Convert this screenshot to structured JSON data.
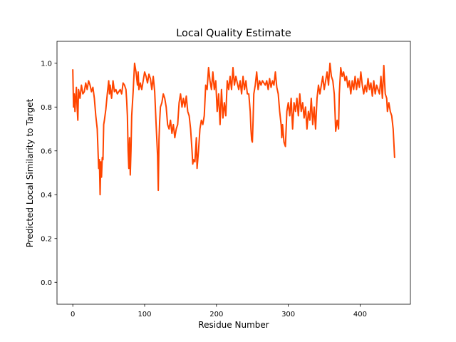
{
  "chart_data": {
    "type": "line",
    "title": "Local Quality Estimate",
    "xlabel": "Residue Number",
    "ylabel": "Predicted Local Similarity to Target",
    "xlim": [
      -22,
      470
    ],
    "ylim": [
      -0.1,
      1.1
    ],
    "xticks": [
      0,
      100,
      200,
      300,
      400
    ],
    "yticks": [
      0.0,
      0.2,
      0.4,
      0.6,
      0.8,
      1.0
    ],
    "ytick_labels": [
      "0.0",
      "0.2",
      "0.4",
      "0.6",
      "0.8",
      "1.0"
    ],
    "grid": false,
    "legend": "none",
    "series": [
      {
        "color": "#ff4500",
        "points": [
          [
            0,
            0.97
          ],
          [
            1,
            0.8
          ],
          [
            2,
            0.86
          ],
          [
            3,
            0.78
          ],
          [
            4,
            0.84
          ],
          [
            5,
            0.89
          ],
          [
            6,
            0.8
          ],
          [
            7,
            0.74
          ],
          [
            8,
            0.88
          ],
          [
            10,
            0.84
          ],
          [
            12,
            0.9
          ],
          [
            14,
            0.86
          ],
          [
            16,
            0.87
          ],
          [
            18,
            0.91
          ],
          [
            20,
            0.88
          ],
          [
            22,
            0.92
          ],
          [
            24,
            0.9
          ],
          [
            26,
            0.87
          ],
          [
            28,
            0.89
          ],
          [
            30,
            0.84
          ],
          [
            32,
            0.76
          ],
          [
            34,
            0.7
          ],
          [
            36,
            0.52
          ],
          [
            37,
            0.56
          ],
          [
            38,
            0.4
          ],
          [
            39,
            0.55
          ],
          [
            40,
            0.48
          ],
          [
            41,
            0.57
          ],
          [
            42,
            0.56
          ],
          [
            43,
            0.72
          ],
          [
            44,
            0.74
          ],
          [
            46,
            0.79
          ],
          [
            48,
            0.86
          ],
          [
            50,
            0.92
          ],
          [
            51,
            0.86
          ],
          [
            52,
            0.9
          ],
          [
            54,
            0.84
          ],
          [
            56,
            0.92
          ],
          [
            58,
            0.87
          ],
          [
            60,
            0.88
          ],
          [
            62,
            0.86
          ],
          [
            64,
            0.87
          ],
          [
            66,
            0.88
          ],
          [
            68,
            0.86
          ],
          [
            70,
            0.91
          ],
          [
            72,
            0.9
          ],
          [
            74,
            0.88
          ],
          [
            75,
            0.83
          ],
          [
            76,
            0.76
          ],
          [
            77,
            0.6
          ],
          [
            78,
            0.52
          ],
          [
            79,
            0.66
          ],
          [
            80,
            0.49
          ],
          [
            81,
            0.6
          ],
          [
            82,
            0.76
          ],
          [
            84,
            0.87
          ],
          [
            86,
            1.0
          ],
          [
            88,
            0.96
          ],
          [
            90,
            0.9
          ],
          [
            91,
            0.96
          ],
          [
            92,
            0.88
          ],
          [
            94,
            0.91
          ],
          [
            96,
            0.88
          ],
          [
            98,
            0.92
          ],
          [
            100,
            0.96
          ],
          [
            102,
            0.94
          ],
          [
            104,
            0.91
          ],
          [
            106,
            0.95
          ],
          [
            108,
            0.93
          ],
          [
            110,
            0.88
          ],
          [
            112,
            0.94
          ],
          [
            114,
            0.87
          ],
          [
            116,
            0.72
          ],
          [
            118,
            0.58
          ],
          [
            119,
            0.42
          ],
          [
            120,
            0.65
          ],
          [
            121,
            0.74
          ],
          [
            122,
            0.8
          ],
          [
            124,
            0.82
          ],
          [
            126,
            0.86
          ],
          [
            128,
            0.84
          ],
          [
            130,
            0.8
          ],
          [
            132,
            0.72
          ],
          [
            134,
            0.7
          ],
          [
            136,
            0.74
          ],
          [
            138,
            0.68
          ],
          [
            140,
            0.72
          ],
          [
            142,
            0.66
          ],
          [
            144,
            0.7
          ],
          [
            146,
            0.72
          ],
          [
            148,
            0.82
          ],
          [
            150,
            0.86
          ],
          [
            152,
            0.8
          ],
          [
            154,
            0.84
          ],
          [
            156,
            0.8
          ],
          [
            158,
            0.85
          ],
          [
            160,
            0.78
          ],
          [
            162,
            0.76
          ],
          [
            164,
            0.7
          ],
          [
            166,
            0.6
          ],
          [
            167,
            0.54
          ],
          [
            168,
            0.56
          ],
          [
            170,
            0.55
          ],
          [
            172,
            0.66
          ],
          [
            173,
            0.52
          ],
          [
            175,
            0.6
          ],
          [
            177,
            0.7
          ],
          [
            179,
            0.74
          ],
          [
            181,
            0.72
          ],
          [
            183,
            0.76
          ],
          [
            185,
            0.9
          ],
          [
            187,
            0.88
          ],
          [
            189,
            0.98
          ],
          [
            191,
            0.92
          ],
          [
            193,
            0.88
          ],
          [
            195,
            0.96
          ],
          [
            197,
            0.88
          ],
          [
            199,
            0.92
          ],
          [
            201,
            0.78
          ],
          [
            203,
            0.86
          ],
          [
            205,
            0.72
          ],
          [
            207,
            0.88
          ],
          [
            209,
            0.75
          ],
          [
            211,
            0.82
          ],
          [
            213,
            0.76
          ],
          [
            215,
            0.92
          ],
          [
            217,
            0.88
          ],
          [
            219,
            0.94
          ],
          [
            221,
            0.88
          ],
          [
            223,
            0.98
          ],
          [
            225,
            0.9
          ],
          [
            227,
            0.94
          ],
          [
            229,
            0.91
          ],
          [
            231,
            0.88
          ],
          [
            233,
            0.92
          ],
          [
            235,
            0.86
          ],
          [
            237,
            0.94
          ],
          [
            239,
            0.88
          ],
          [
            241,
            0.92
          ],
          [
            243,
            0.86
          ],
          [
            245,
            0.86
          ],
          [
            247,
            0.78
          ],
          [
            248,
            0.7
          ],
          [
            249,
            0.65
          ],
          [
            250,
            0.64
          ],
          [
            251,
            0.74
          ],
          [
            252,
            0.86
          ],
          [
            254,
            0.9
          ],
          [
            256,
            0.96
          ],
          [
            258,
            0.88
          ],
          [
            260,
            0.92
          ],
          [
            262,
            0.9
          ],
          [
            264,
            0.92
          ],
          [
            266,
            0.91
          ],
          [
            268,
            0.9
          ],
          [
            270,
            0.92
          ],
          [
            272,
            0.88
          ],
          [
            274,
            0.93
          ],
          [
            276,
            0.89
          ],
          [
            278,
            0.92
          ],
          [
            280,
            0.9
          ],
          [
            282,
            0.96
          ],
          [
            284,
            0.89
          ],
          [
            286,
            0.86
          ],
          [
            288,
            0.78
          ],
          [
            290,
            0.72
          ],
          [
            291,
            0.66
          ],
          [
            292,
            0.72
          ],
          [
            294,
            0.64
          ],
          [
            296,
            0.62
          ],
          [
            298,
            0.78
          ],
          [
            300,
            0.82
          ],
          [
            302,
            0.76
          ],
          [
            304,
            0.84
          ],
          [
            306,
            0.7
          ],
          [
            308,
            0.82
          ],
          [
            310,
            0.78
          ],
          [
            312,
            0.84
          ],
          [
            314,
            0.76
          ],
          [
            316,
            0.86
          ],
          [
            318,
            0.78
          ],
          [
            320,
            0.82
          ],
          [
            322,
            0.75
          ],
          [
            324,
            0.8
          ],
          [
            326,
            0.7
          ],
          [
            328,
            0.78
          ],
          [
            330,
            0.74
          ],
          [
            332,
            0.84
          ],
          [
            334,
            0.72
          ],
          [
            336,
            0.8
          ],
          [
            338,
            0.7
          ],
          [
            340,
            0.84
          ],
          [
            342,
            0.9
          ],
          [
            344,
            0.86
          ],
          [
            346,
            0.9
          ],
          [
            348,
            0.94
          ],
          [
            350,
            0.88
          ],
          [
            352,
            0.92
          ],
          [
            354,
            0.96
          ],
          [
            356,
            0.9
          ],
          [
            358,
            1.0
          ],
          [
            360,
            0.94
          ],
          [
            362,
            0.92
          ],
          [
            364,
            0.86
          ],
          [
            365,
            0.78
          ],
          [
            366,
            0.69
          ],
          [
            368,
            0.74
          ],
          [
            370,
            0.7
          ],
          [
            371,
            0.86
          ],
          [
            373,
            0.98
          ],
          [
            375,
            0.94
          ],
          [
            377,
            0.96
          ],
          [
            379,
            0.92
          ],
          [
            381,
            0.94
          ],
          [
            383,
            0.89
          ],
          [
            385,
            0.92
          ],
          [
            387,
            0.86
          ],
          [
            389,
            0.92
          ],
          [
            391,
            0.88
          ],
          [
            393,
            0.94
          ],
          [
            395,
            0.88
          ],
          [
            397,
            0.93
          ],
          [
            399,
            0.89
          ],
          [
            401,
            0.96
          ],
          [
            403,
            0.9
          ],
          [
            405,
            0.86
          ],
          [
            407,
            0.9
          ],
          [
            409,
            0.87
          ],
          [
            411,
            0.93
          ],
          [
            413,
            0.88
          ],
          [
            415,
            0.91
          ],
          [
            417,
            0.85
          ],
          [
            419,
            0.92
          ],
          [
            421,
            0.86
          ],
          [
            423,
            0.9
          ],
          [
            425,
            0.88
          ],
          [
            427,
            0.86
          ],
          [
            429,
            0.94
          ],
          [
            431,
            0.84
          ],
          [
            433,
            0.99
          ],
          [
            434,
            0.92
          ],
          [
            435,
            0.86
          ],
          [
            437,
            0.84
          ],
          [
            438,
            0.78
          ],
          [
            440,
            0.82
          ],
          [
            442,
            0.78
          ],
          [
            444,
            0.76
          ],
          [
            446,
            0.7
          ],
          [
            448,
            0.57
          ]
        ]
      }
    ]
  }
}
